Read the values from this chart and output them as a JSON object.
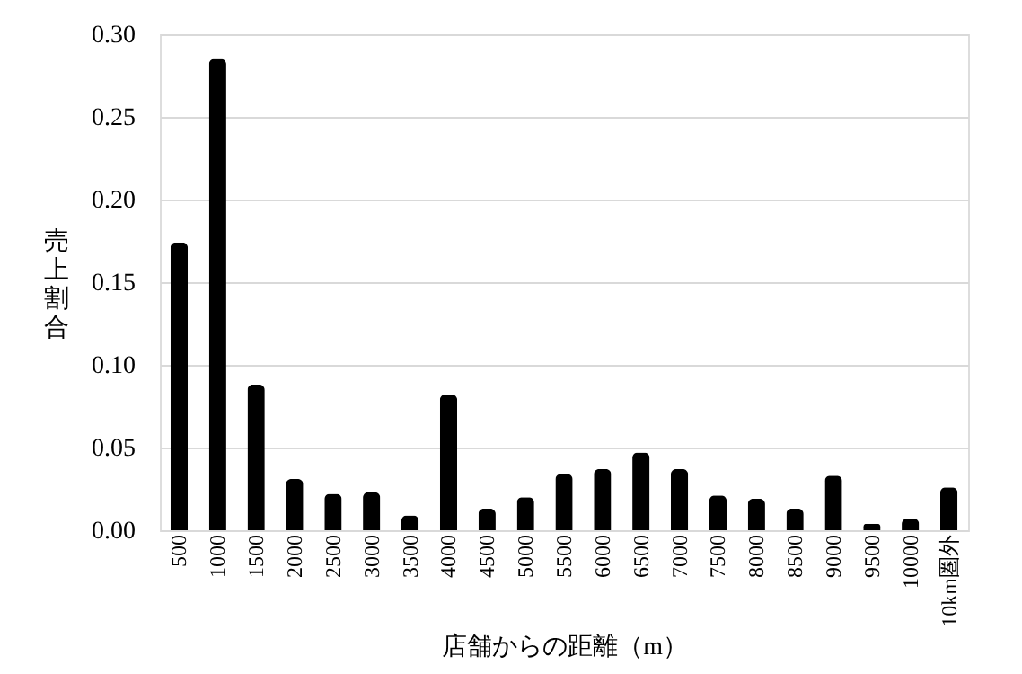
{
  "chart_data": {
    "type": "bar",
    "xlabel": "店舗からの距離（m）",
    "ylabel": "売上割合",
    "categories": [
      "500",
      "1000",
      "1500",
      "2000",
      "2500",
      "3000",
      "3500",
      "4000",
      "4500",
      "5000",
      "5500",
      "6000",
      "6500",
      "7000",
      "7500",
      "8000",
      "8500",
      "9000",
      "9500",
      "10000",
      "10km圏外"
    ],
    "values": [
      0.174,
      0.285,
      0.088,
      0.031,
      0.022,
      0.023,
      0.009,
      0.082,
      0.013,
      0.02,
      0.034,
      0.037,
      0.047,
      0.037,
      0.021,
      0.019,
      0.013,
      0.033,
      0.004,
      0.007,
      0.026
    ],
    "color": "#000000",
    "ylim": [
      0,
      0.3
    ],
    "yticks": [
      {
        "value": 0,
        "label": "0.00"
      },
      {
        "value": 0.05,
        "label": "0.05"
      },
      {
        "value": 0.1,
        "label": "0.10"
      },
      {
        "value": 0.15,
        "label": "0.15"
      },
      {
        "value": 0.2,
        "label": "0.20"
      },
      {
        "value": 0.25,
        "label": "0.25"
      },
      {
        "value": 0.3,
        "label": "0.30"
      }
    ],
    "grid": "y"
  }
}
